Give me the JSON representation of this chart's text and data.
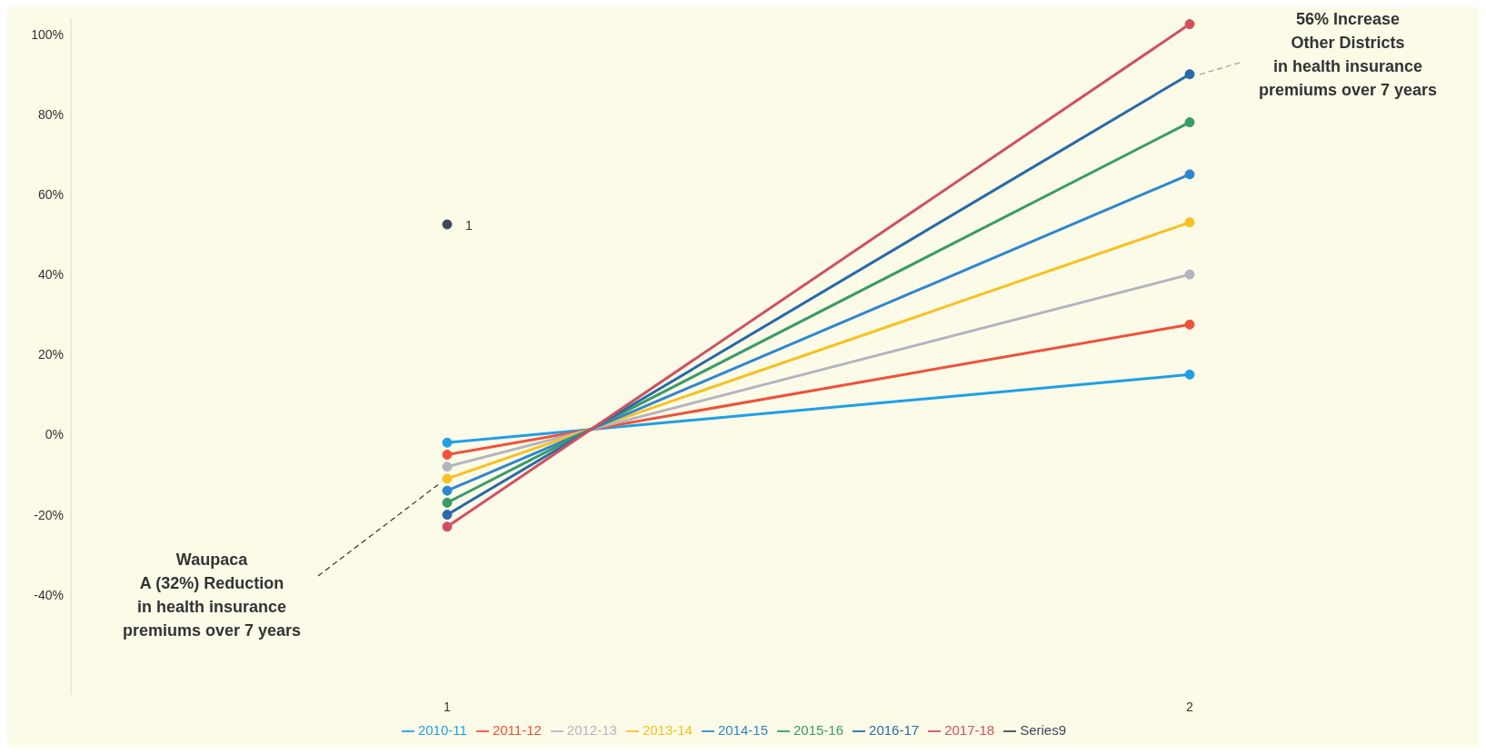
{
  "chart_data": {
    "type": "line",
    "categories": [
      "1",
      "2"
    ],
    "series": [
      {
        "name": "2010-11",
        "color": "#1ea0e6",
        "values": [
          -2,
          15
        ]
      },
      {
        "name": "2011-12",
        "color": "#f0503c",
        "values": [
          -5,
          27.5
        ]
      },
      {
        "name": "2012-13",
        "color": "#b4b4c0",
        "values": [
          -8,
          40
        ]
      },
      {
        "name": "2013-14",
        "color": "#f8c020",
        "values": [
          -11,
          53
        ]
      },
      {
        "name": "2014-15",
        "color": "#2f86d0",
        "values": [
          -14,
          65
        ]
      },
      {
        "name": "2015-16",
        "color": "#3a9a6a",
        "values": [
          -17,
          78
        ]
      },
      {
        "name": "2016-17",
        "color": "#2a6aa8",
        "values": [
          -20,
          90
        ]
      },
      {
        "name": "2017-18",
        "color": "#d05060",
        "values": [
          -23,
          102.5
        ]
      },
      {
        "name": "Series9",
        "color": "#404858",
        "values": [
          52.5,
          null
        ]
      }
    ],
    "ylim": [
      -65,
      104
    ],
    "yticks": [
      {
        "value": -40,
        "label": "-40%"
      },
      {
        "value": -20,
        "label": "-20%"
      },
      {
        "value": 0,
        "label": "0%"
      },
      {
        "value": 20,
        "label": "20%"
      },
      {
        "value": 40,
        "label": "40%"
      },
      {
        "value": 60,
        "label": "60%"
      },
      {
        "value": 80,
        "label": "80%"
      },
      {
        "value": 100,
        "label": "100%"
      }
    ],
    "grid": false,
    "legend": "bottom",
    "marker": "circle",
    "line_style": "solid",
    "annotations": [
      {
        "text": "1",
        "x": "1",
        "y": 52.5
      },
      "Waupaca\nA (32%) Reduction\nin health insurance\npremiums over 7 years",
      "56% Increase\nOther Districts\nin health insurance\npremiums over 7 years"
    ]
  }
}
